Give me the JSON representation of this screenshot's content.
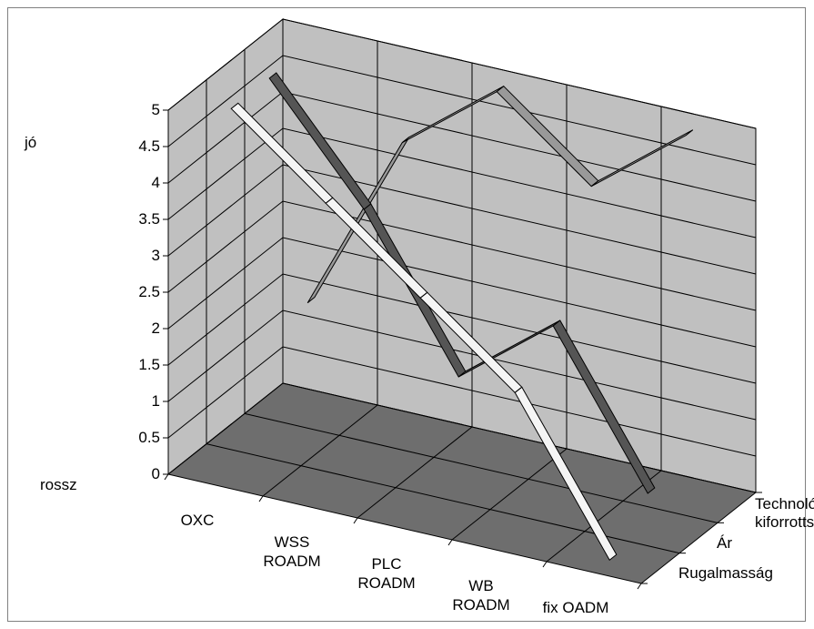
{
  "chart_data": {
    "type": "line",
    "style": "3d-ribbon",
    "categories": [
      "OXC",
      "WSS\nROADM",
      "PLC\nROADM",
      "WB\nROADM",
      "fix OADM"
    ],
    "ylim": [
      0,
      5
    ],
    "yticks": [
      "0",
      "0.5",
      "1",
      "1.5",
      "2",
      "2.5",
      "3",
      "3.5",
      "4",
      "4.5",
      "5"
    ],
    "ylabel_top": "jó",
    "ylabel_bottom": "rossz",
    "grid": true,
    "series": [
      {
        "name": "Rugalmasság",
        "values": [
          5,
          4,
          3,
          2,
          0
        ],
        "color": "#f5f5f5"
      },
      {
        "name": "Ár",
        "values": [
          5,
          3.5,
          1.5,
          2.5,
          0.5
        ],
        "color": "#555555"
      },
      {
        "name": "Technológia\nkiforrottsága",
        "values": [
          1.5,
          4,
          5,
          4,
          5
        ],
        "color": "#999999"
      }
    ]
  }
}
